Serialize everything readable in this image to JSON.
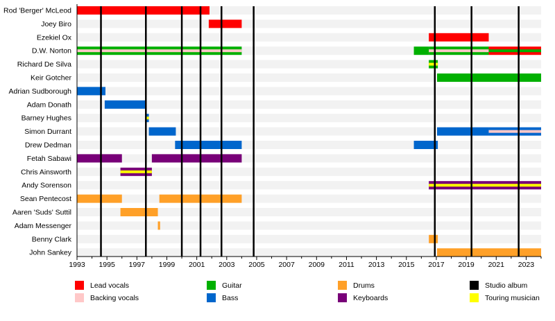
{
  "chart_data": {
    "type": "timeline",
    "xlim": [
      1993,
      2024
    ],
    "x_ticks": [
      1993,
      1995,
      1997,
      1999,
      2001,
      2003,
      2005,
      2007,
      2009,
      2011,
      2013,
      2015,
      2017,
      2019,
      2021,
      2023
    ],
    "members": [
      "Rod 'Berger' McLeod",
      "Joey Biro",
      "Ezekiel Ox",
      "D.W. Norton",
      "Richard De Silva",
      "Keir Gotcher",
      "Adrian Sudborough",
      "Adam Donath",
      "Barney Hughes",
      "Simon Durrant",
      "Drew Dedman",
      "Fetah Sabawi",
      "Chris Ainsworth",
      "Andy Sorenson",
      "Sean Pentecost",
      "Aaren 'Suds' Suttil",
      "Adam Messenger",
      "Benny Clark",
      "John Sankey"
    ],
    "roles": {
      "lead_vocals": {
        "label": "Lead vocals",
        "color": "#ff0000"
      },
      "backing_vocals": {
        "label": "Backing vocals",
        "color": "#ffc8c8"
      },
      "guitar": {
        "label": "Guitar",
        "color": "#00b000"
      },
      "bass": {
        "label": "Bass",
        "color": "#0066cc"
      },
      "drums": {
        "label": "Drums",
        "color": "#ffa028"
      },
      "keyboards": {
        "label": "Keyboards",
        "color": "#780078"
      },
      "studio_album": {
        "label": "Studio album",
        "color": "#000000"
      },
      "touring": {
        "label": "Touring musician",
        "color": "#ffff00"
      }
    },
    "legend_order": [
      "lead_vocals",
      "backing_vocals",
      "guitar",
      "bass",
      "drums",
      "keyboards",
      "studio_album",
      "touring"
    ],
    "studio_albums": [
      1994.6,
      1997.6,
      2000.0,
      2001.25,
      2002.65,
      2004.8,
      2016.9,
      2019.35,
      2022.5
    ],
    "bars": [
      {
        "member": 0,
        "start": 1993.0,
        "end": 2001.85,
        "role": "lead_vocals"
      },
      {
        "member": 1,
        "start": 2001.8,
        "end": 2004.0,
        "role": "lead_vocals"
      },
      {
        "member": 2,
        "start": 2016.5,
        "end": 2020.5,
        "role": "lead_vocals"
      },
      {
        "member": 3,
        "start": 1993.0,
        "end": 2004.0,
        "role": "guitar",
        "secondary": "backing_vocals"
      },
      {
        "member": 3,
        "start": 2015.5,
        "end": 2016.5,
        "role": "guitar"
      },
      {
        "member": 3,
        "start": 2016.5,
        "end": 2020.5,
        "role": "guitar",
        "secondary": "backing_vocals"
      },
      {
        "member": 3,
        "start": 2020.5,
        "end": 2024.0,
        "role": "lead_vocals",
        "secondary": "guitar"
      },
      {
        "member": 4,
        "start": 2016.5,
        "end": 2017.1,
        "role": "guitar",
        "secondary": "touring"
      },
      {
        "member": 5,
        "start": 2017.05,
        "end": 2024.0,
        "role": "guitar"
      },
      {
        "member": 6,
        "start": 1993.0,
        "end": 1994.9,
        "role": "bass"
      },
      {
        "member": 7,
        "start": 1994.85,
        "end": 1997.65,
        "role": "bass"
      },
      {
        "member": 8,
        "start": 1997.6,
        "end": 1997.8,
        "role": "bass",
        "secondary": "touring"
      },
      {
        "member": 9,
        "start": 1997.8,
        "end": 1999.6,
        "role": "bass"
      },
      {
        "member": 9,
        "start": 2017.05,
        "end": 2020.5,
        "role": "bass"
      },
      {
        "member": 9,
        "start": 2020.5,
        "end": 2024.0,
        "role": "bass",
        "secondary": "backing_vocals"
      },
      {
        "member": 10,
        "start": 1999.55,
        "end": 2004.0,
        "role": "bass"
      },
      {
        "member": 10,
        "start": 2015.5,
        "end": 2017.1,
        "role": "bass"
      },
      {
        "member": 11,
        "start": 1993.0,
        "end": 1996.0,
        "role": "keyboards"
      },
      {
        "member": 11,
        "start": 1998.0,
        "end": 2004.0,
        "role": "keyboards"
      },
      {
        "member": 12,
        "start": 1995.9,
        "end": 1998.0,
        "role": "keyboards",
        "secondary": "touring"
      },
      {
        "member": 13,
        "start": 2016.5,
        "end": 2024.0,
        "role": "keyboards",
        "secondary": "touring"
      },
      {
        "member": 14,
        "start": 1993.0,
        "end": 1996.0,
        "role": "drums"
      },
      {
        "member": 14,
        "start": 1998.5,
        "end": 2004.0,
        "role": "drums"
      },
      {
        "member": 15,
        "start": 1995.9,
        "end": 1998.4,
        "role": "drums"
      },
      {
        "member": 16,
        "start": 1998.4,
        "end": 1998.55,
        "role": "drums"
      },
      {
        "member": 17,
        "start": 2016.5,
        "end": 2017.1,
        "role": "drums"
      },
      {
        "member": 18,
        "start": 2017.05,
        "end": 2024.0,
        "role": "drums"
      }
    ]
  }
}
